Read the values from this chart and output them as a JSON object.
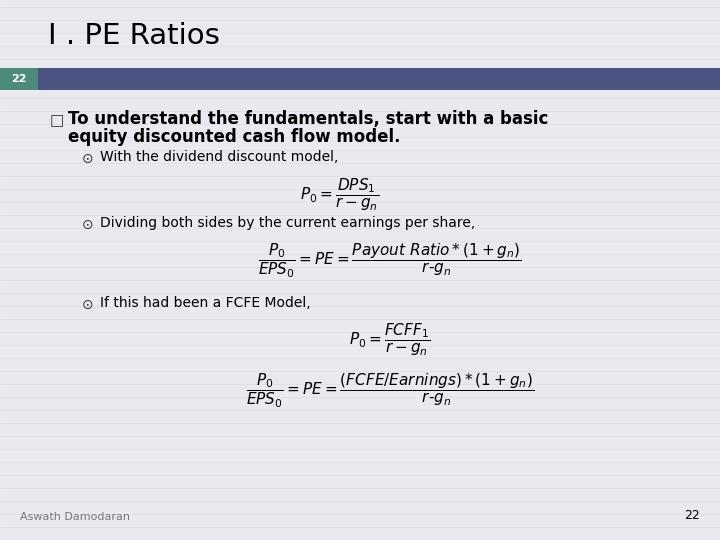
{
  "title": "I . PE Ratios",
  "slide_number": "22",
  "header_bar_color": "#4a5480",
  "slide_number_bg": "#4e8a7a",
  "background_color": "#e8eaf0",
  "footer_text": "Aswath Damodaran",
  "page_num": "22",
  "bullet1_line1": "To understand the fundamentals, start with a basic",
  "bullet1_line2": "equity discounted cash flow model.",
  "sub1": "With the dividend discount model,",
  "sub2": "Dividing both sides by the current earnings per share,",
  "sub3": "If this had been a FCFE Model,",
  "title_color": "#000000",
  "text_color": "#000000",
  "footer_color": "#777777"
}
